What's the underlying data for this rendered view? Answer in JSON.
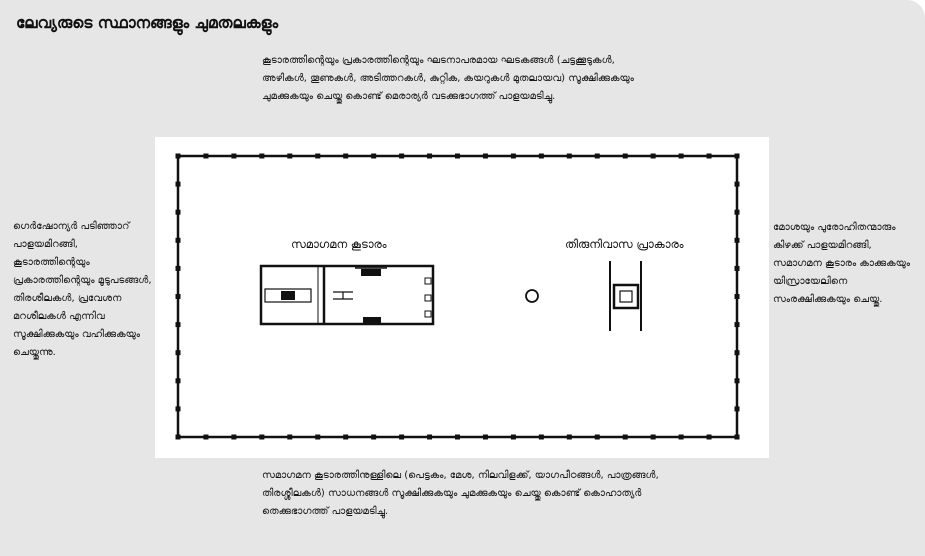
{
  "title": "ലേവ്യരുടെ സ്ഥാനങ്ങളും ചുമതലകളും",
  "notes": {
    "top": "കൂടാരത്തിന്റെയും പ്രകാരത്തിന്റെയും ഘടനാപരമായ ഘടകങ്ങൾ (ചട്ടക്കൂടുകൾ, അഴികൾ, തൂണുകൾ, അടിത്തറകൾ, കുറ്റിക, കയറുകൾ മുതലായവ) സൂക്ഷിക്കുകയും ചുമക്കുകയും ചെയ്തു കൊണ്ട് മെരാര്യർ വടക്കുഭാഗത്ത് പാളയമടിച്ചു.",
    "left": "ഗെർഷോന്യർ പടിഞ്ഞാറ് പാളയമിറങ്ങി, കൂടാരത്തിന്റെയും പ്രകാരത്തിന്റെയും മൂടുപടങ്ങൾ, തിരശീലകൾ, പ്രവേശന മറശീലകൾ എന്നിവ സൂക്ഷിക്കുകയും വഹിക്കുകയും ചെയ്തുന്നു.",
    "right": "മോശയും പുരോഹിതന്മാരും കിഴക്ക് പാളയമിറങ്ങി, സമാഗമന കൂടാരം കാക്കുകയും യിസ്രായേലിനെ സംരക്ഷിക്കുകയും ചെയ്തു.",
    "bottom": "സമാഗമന കൂടാരത്തിനുള്ളിലെ (പെട്ടകം, മേശ, നിലവിളക്ക്, യാഗപീഠങ്ങൾ, പാത്രങ്ങൾ, തിരശ്ശീലകൾ) സാധനങ്ങൾ സൂക്ഷിക്കുകയും ചുമക്കുകയും ചെയ്തു കൊണ്ട് കൊഹാത്യർ തെക്കുഭാഗത്ത് പാളയമടിച്ചു."
  },
  "diagram": {
    "tent_label": "സമാഗമന കൂടാരം",
    "court_label": "തിരുനിവാസ പ്രാകാരം"
  }
}
